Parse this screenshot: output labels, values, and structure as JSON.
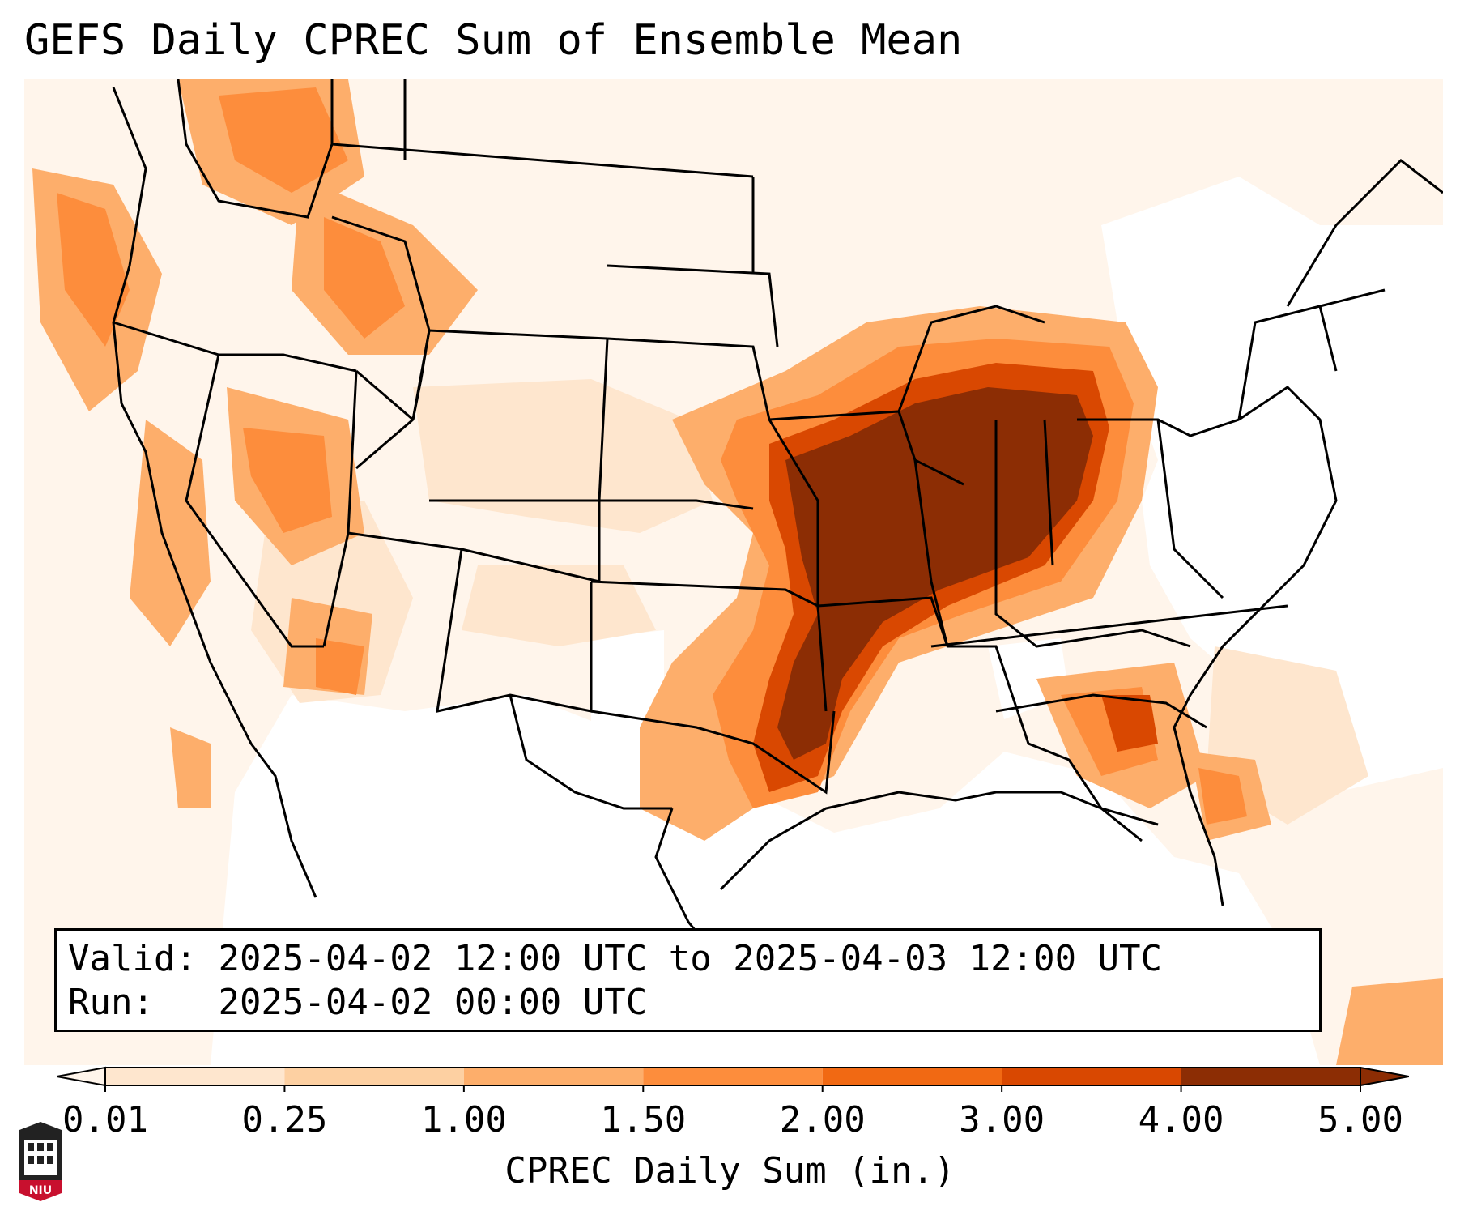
{
  "title": "GEFS Daily CPREC Sum of Ensemble Mean",
  "valid_label": "Valid:",
  "valid_value": "2025-04-02 12:00 UTC to 2025-04-03 12:00 UTC",
  "run_label": "Run:",
  "run_value": "2025-04-02 00:00 UTC",
  "colorbar": {
    "label": "CPREC Daily Sum (in.)",
    "ticks": [
      "0.01",
      "0.25",
      "1.00",
      "1.50",
      "2.00",
      "3.00",
      "4.00",
      "5.00"
    ],
    "colors": [
      "#fff5eb",
      "#fee6ce",
      "#fdd0a2",
      "#fdae6b",
      "#fd8d3c",
      "#f16913",
      "#d94801",
      "#8c2d04"
    ],
    "extend": "both"
  },
  "logo": {
    "icon": "niu-logo-icon",
    "text": "NIU",
    "color": "#c8102e"
  },
  "map_colors": {
    "background": "#fff5eb",
    "trace": "#fee6ce",
    "light": "#fdd0a2",
    "medium": "#fdae6b",
    "orange": "#fd8d3c",
    "dark": "#f16913",
    "darker": "#d94801",
    "max": "#8c2d04",
    "dry": "#ffffff"
  }
}
